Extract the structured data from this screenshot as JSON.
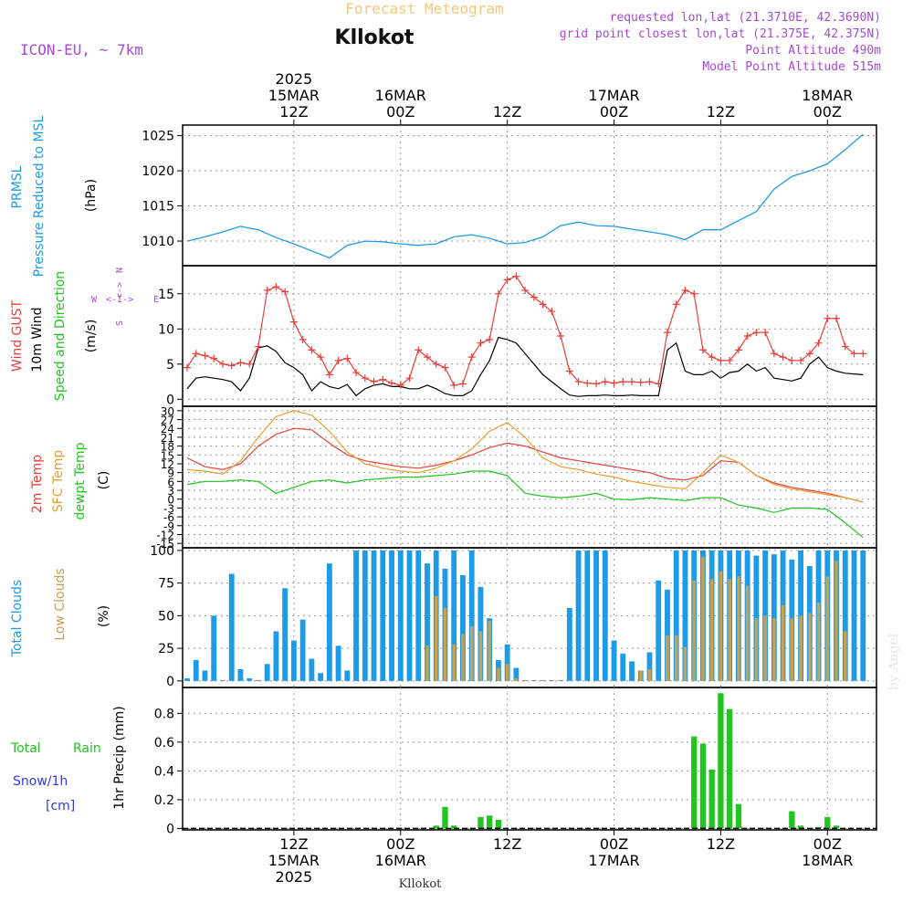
{
  "header": {
    "title": "Forecast Meteogram",
    "location": "Kllokot",
    "model": "ICON-EU, ~ 7km",
    "info": [
      "requested lon,lat (21.3710E, 42.3690N)",
      "grid point closest lon,lat (21.375E, 42.375N)",
      "Point Altitude 490m",
      "Model Point Altitude 515m"
    ],
    "watermark": "by Angel",
    "footer_location": "Kllokot"
  },
  "time_axis": {
    "top_ticks": [
      {
        "hour": 12,
        "lines": [
          "2025",
          "15MAR",
          "12Z"
        ]
      },
      {
        "hour": 24,
        "lines": [
          "16MAR",
          "00Z"
        ]
      },
      {
        "hour": 36,
        "lines": [
          "12Z"
        ]
      },
      {
        "hour": 48,
        "lines": [
          "17MAR",
          "00Z"
        ]
      },
      {
        "hour": 60,
        "lines": [
          "12Z"
        ]
      },
      {
        "hour": 72,
        "lines": [
          "18MAR",
          "00Z"
        ]
      }
    ],
    "bottom_ticks": [
      {
        "hour": 12,
        "lines": [
          "12Z",
          "15MAR",
          "2025"
        ]
      },
      {
        "hour": 24,
        "lines": [
          "00Z",
          "16MAR"
        ]
      },
      {
        "hour": 36,
        "lines": [
          "12Z"
        ]
      },
      {
        "hour": 48,
        "lines": [
          "00Z",
          "17MAR"
        ]
      },
      {
        "hour": 60,
        "lines": [
          "12Z"
        ]
      },
      {
        "hour": 72,
        "lines": [
          "00Z",
          "18MAR"
        ]
      }
    ]
  },
  "labels": {
    "pressure": {
      "name1": "PRMSL",
      "name2": "Pressure Reduced to MSL",
      "unit": "(hPa)"
    },
    "wind": {
      "gust": "Wind GUST",
      "wind": "10m Wind",
      "dir": "Speed and Direction",
      "unit": "(m/s)",
      "compass_n": "N",
      "compass_s": "S",
      "compass_w": "W",
      "compass_e": "E"
    },
    "temp": {
      "t2m": "2m Temp",
      "sfc": "SFC Temp",
      "dew": "dewpt Temp",
      "unit": "(C)"
    },
    "clouds": {
      "total": "Total Clouds",
      "low": "Low Clouds",
      "unit": "(%)"
    },
    "precip": {
      "rain1": "Total",
      "rain2": "Rain",
      "snow": "Snow/1h",
      "snow_unit": "[cm]",
      "axis": "1hr Precip (mm)"
    }
  },
  "colors": {
    "pressure": "#1e9be6",
    "gust": "#e8403a",
    "wind": "#000000",
    "t2m": "#e8403a",
    "sfc": "#e8a030",
    "dew": "#22c422",
    "total_clouds": "#1e9be6",
    "low_clouds": "#c8a050",
    "rain": "#22c422",
    "snow": "#2a3ce6",
    "purple": "#a64ad6",
    "title_orange": "#f2c87a"
  },
  "chart_data": [
    {
      "type": "line",
      "name": "PRMSL",
      "ylabel": "(hPa)",
      "yticks": [
        1010,
        1015,
        1020,
        1025
      ],
      "ylim": [
        1006.5,
        1026.5
      ],
      "x_hours": [
        0,
        2,
        4,
        6,
        8,
        10,
        12,
        14,
        16,
        18,
        20,
        22,
        24,
        26,
        28,
        30,
        32,
        34,
        36,
        38,
        40,
        42,
        44,
        46,
        48,
        50,
        52,
        54,
        56,
        58,
        60,
        62,
        64,
        66,
        68,
        70,
        72,
        74,
        76
      ],
      "values": [
        1010.0,
        1010.6,
        1011.3,
        1012.1,
        1011.6,
        1010.5,
        1009.6,
        1008.6,
        1007.6,
        1009.4,
        1010.0,
        1009.9,
        1009.6,
        1009.4,
        1009.6,
        1010.6,
        1010.9,
        1010.4,
        1009.6,
        1009.8,
        1010.6,
        1012.2,
        1012.7,
        1012.2,
        1012.1,
        1011.7,
        1011.3,
        1010.9,
        1010.2,
        1011.6,
        1011.6,
        1012.9,
        1014.2,
        1017.4,
        1019.2,
        1020.0,
        1021.0,
        1023.0,
        1025.2
      ]
    },
    {
      "type": "line",
      "name": "Wind",
      "ylabel": "(m/s)",
      "yticks": [
        0,
        5,
        10,
        15
      ],
      "ylim": [
        -1,
        19
      ],
      "x_hours": [
        0,
        1,
        2,
        3,
        4,
        5,
        6,
        7,
        8,
        9,
        10,
        11,
        12,
        13,
        14,
        15,
        16,
        17,
        18,
        19,
        20,
        21,
        22,
        23,
        24,
        25,
        26,
        27,
        28,
        29,
        30,
        31,
        32,
        33,
        34,
        35,
        36,
        37,
        38,
        39,
        40,
        41,
        42,
        43,
        44,
        45,
        46,
        47,
        48,
        49,
        50,
        51,
        52,
        53,
        54,
        55,
        56,
        57,
        58,
        59,
        60,
        61,
        62,
        63,
        64,
        65,
        66,
        67,
        68,
        69,
        70,
        71,
        72,
        73,
        74,
        75,
        76
      ],
      "series": [
        {
          "name": "Wind GUST",
          "values": [
            4.5,
            6.5,
            6.2,
            5.8,
            5.0,
            4.8,
            5.2,
            5.0,
            7.5,
            15.5,
            16.0,
            15.3,
            11.0,
            8.5,
            7.0,
            6.0,
            3.5,
            5.5,
            5.8,
            3.8,
            3.0,
            2.5,
            2.8,
            2.3,
            2.0,
            3.0,
            7.0,
            6.0,
            5.0,
            4.5,
            2.0,
            2.2,
            6.0,
            8.0,
            8.5,
            15.0,
            17.0,
            17.5,
            15.5,
            14.5,
            13.5,
            12.5,
            9.0,
            4.0,
            2.5,
            2.3,
            2.2,
            2.5,
            2.3,
            2.5,
            2.5,
            2.4,
            2.5,
            2.2,
            9.5,
            13.5,
            15.5,
            15.0,
            7.0,
            6.0,
            5.5,
            5.5,
            7.0,
            9.0,
            9.5,
            9.5,
            6.5,
            6.0,
            5.5,
            5.5,
            6.5,
            8.0,
            11.5,
            11.5,
            7.5,
            6.5,
            6.5
          ]
        },
        {
          "name": "10m Wind",
          "values": [
            1.5,
            3.0,
            3.2,
            3.0,
            2.8,
            2.5,
            1.2,
            3.0,
            7.3,
            7.6,
            6.8,
            5.2,
            4.5,
            3.5,
            1.2,
            2.5,
            1.8,
            1.5,
            2.1,
            0.5,
            1.5,
            2.0,
            2.2,
            1.8,
            1.8,
            1.5,
            1.5,
            2.0,
            1.5,
            0.8,
            0.5,
            0.5,
            1.2,
            3.5,
            5.5,
            8.8,
            8.5,
            8.0,
            6.5,
            5.0,
            3.5,
            2.5,
            1.5,
            0.6,
            0.4,
            0.5,
            0.5,
            0.6,
            0.5,
            0.5,
            0.6,
            0.5,
            0.5,
            0.5,
            7.0,
            8.0,
            4.0,
            3.5,
            3.5,
            4.0,
            3.0,
            3.8,
            4.0,
            5.0,
            4.0,
            4.5,
            3.0,
            2.8,
            2.6,
            3.0,
            5.0,
            6.0,
            4.5,
            4.0,
            3.7,
            3.6,
            3.5
          ]
        }
      ]
    },
    {
      "type": "line",
      "name": "Temperature",
      "ylabel": "(C)",
      "yticks": [
        -15,
        -12,
        -9,
        -6,
        -3,
        0,
        3,
        6,
        9,
        12,
        15,
        18,
        21,
        24,
        27,
        30
      ],
      "ylim": [
        -16.5,
        31.5
      ],
      "x_hours": [
        0,
        2,
        4,
        6,
        8,
        10,
        12,
        14,
        16,
        18,
        20,
        22,
        24,
        26,
        28,
        30,
        32,
        34,
        36,
        38,
        40,
        42,
        44,
        46,
        48,
        50,
        52,
        54,
        56,
        58,
        60,
        62,
        64,
        66,
        68,
        70,
        72,
        74,
        76
      ],
      "series": [
        {
          "name": "2m Temp",
          "values": [
            14,
            11,
            10,
            12,
            18,
            22,
            24,
            23.5,
            19,
            15,
            13,
            12,
            11,
            10.5,
            11.5,
            13,
            15,
            17.5,
            19,
            18,
            16,
            14,
            13,
            12,
            11,
            10,
            9,
            7,
            6.5,
            8,
            13,
            12.5,
            8,
            5.5,
            4,
            3,
            2,
            0.5,
            -1
          ]
        },
        {
          "name": "SFC Temp",
          "values": [
            10,
            9.5,
            8.5,
            13,
            21,
            28,
            30,
            28.5,
            23,
            16,
            12,
            10.5,
            9.5,
            9,
            10.5,
            13,
            17,
            23,
            26,
            21,
            14,
            11,
            10,
            8.5,
            7.5,
            6,
            5,
            4,
            3.5,
            9,
            15,
            12.5,
            8,
            5,
            3.5,
            2.5,
            1.5,
            0.5,
            -1
          ]
        },
        {
          "name": "dewpt Temp",
          "values": [
            5,
            6,
            6,
            6.5,
            6,
            2,
            4,
            6,
            6.5,
            5.5,
            6.5,
            7,
            7.5,
            7.5,
            8,
            8.5,
            9.5,
            9.5,
            8,
            2,
            1,
            0.5,
            1,
            2,
            0,
            -0.2,
            0.5,
            0,
            -0.5,
            0.5,
            0.5,
            -2,
            -3,
            -4.5,
            -3,
            -3,
            -3.5,
            -8,
            -13
          ]
        }
      ]
    },
    {
      "type": "bar",
      "name": "Clouds",
      "ylabel": "(%)",
      "yticks": [
        0,
        25,
        50,
        75,
        100
      ],
      "ylim": [
        -5,
        102
      ],
      "x_hours": [
        0,
        1,
        2,
        3,
        4,
        5,
        6,
        7,
        8,
        9,
        10,
        11,
        12,
        13,
        14,
        15,
        16,
        17,
        18,
        19,
        20,
        21,
        22,
        23,
        24,
        25,
        26,
        27,
        28,
        29,
        30,
        31,
        32,
        33,
        34,
        35,
        36,
        37,
        38,
        39,
        40,
        41,
        42,
        43,
        44,
        45,
        46,
        47,
        48,
        49,
        50,
        51,
        52,
        53,
        54,
        55,
        56,
        57,
        58,
        59,
        60,
        61,
        62,
        63,
        64,
        65,
        66,
        67,
        68,
        69,
        70,
        71,
        72,
        73,
        74,
        75,
        76
      ],
      "series": [
        {
          "name": "Total Clouds",
          "values": [
            2,
            16,
            8,
            50,
            0,
            82,
            9,
            2,
            0,
            13,
            38,
            71,
            31,
            47,
            17,
            6,
            90,
            27,
            8,
            100,
            100,
            100,
            100,
            100,
            100,
            100,
            100,
            90,
            100,
            86,
            100,
            81,
            100,
            72,
            48,
            16,
            28,
            10,
            0,
            0,
            0,
            0,
            0,
            56,
            100,
            100,
            100,
            100,
            31,
            21,
            15,
            8,
            22,
            77,
            70,
            100,
            100,
            100,
            100,
            100,
            100,
            100,
            100,
            100,
            96,
            100,
            97,
            100,
            93,
            100,
            88,
            100,
            100,
            100,
            100,
            100,
            100
          ]
        },
        {
          "name": "Low Clouds",
          "values": [
            0,
            0,
            0,
            0,
            0,
            0,
            0,
            0,
            0,
            0,
            0,
            0,
            0,
            0,
            0,
            0,
            0,
            0,
            0,
            0,
            0,
            0,
            0,
            0,
            0,
            0,
            0,
            27,
            65,
            56,
            28,
            36,
            42,
            38,
            46,
            10,
            13,
            2,
            0,
            0,
            0,
            0,
            0,
            0,
            0,
            0,
            0,
            0,
            0,
            0,
            0,
            8,
            9,
            0,
            35,
            35,
            26,
            77,
            95,
            78,
            84,
            78,
            80,
            73,
            48,
            50,
            48,
            58,
            48,
            50,
            52,
            60,
            80,
            92,
            38,
            0,
            0
          ]
        }
      ]
    },
    {
      "type": "bar",
      "name": "Precipitation",
      "ylabel": "1hr Precip (mm)",
      "yticks": [
        0,
        0.2,
        0.4,
        0.6,
        0.8
      ],
      "ylim": [
        -0.01,
        0.98
      ],
      "series": [
        {
          "name": "Total Rain",
          "x_hours": [
            28,
            29,
            30,
            33,
            34,
            35,
            57,
            58,
            59,
            60,
            61,
            62,
            68,
            69,
            71,
            72,
            73
          ],
          "values": [
            0.02,
            0.15,
            0.02,
            0.08,
            0.09,
            0.06,
            0.64,
            0.59,
            0.41,
            0.94,
            0.83,
            0.17,
            0.12,
            0.02,
            0.01,
            0.08,
            0.02
          ]
        },
        {
          "name": "Snow/1h",
          "x_hours": [],
          "values": []
        }
      ]
    }
  ]
}
